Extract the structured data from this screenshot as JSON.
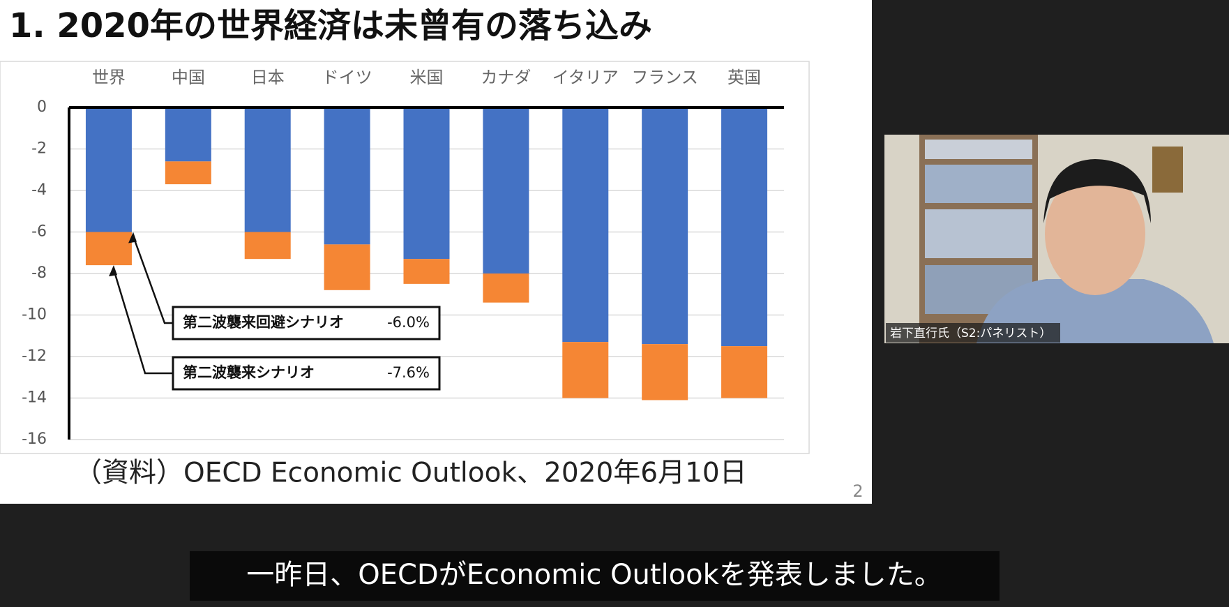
{
  "chart_data": {
    "type": "stacked-bar",
    "title": "1. 2020年の世界経済は未曾有の落ち込み",
    "source": "（資料）OECD Economic Outlook、2020年6月10日",
    "categories": [
      "世界",
      "中国",
      "日本",
      "ドイツ",
      "米国",
      "カナダ",
      "イタリア",
      "フランス",
      "英国"
    ],
    "series": [
      {
        "name": "第二波襲来回避シナリオ",
        "color": "#4472c4",
        "values": [
          -6.0,
          -2.6,
          -6.0,
          -6.6,
          -7.3,
          -8.0,
          -11.3,
          -11.4,
          -11.5
        ]
      },
      {
        "name": "第二波襲来シナリオ",
        "color": "#f58634",
        "values": [
          -1.6,
          -1.1,
          -1.3,
          -2.2,
          -1.2,
          -1.4,
          -2.7,
          -2.7,
          -2.5
        ]
      }
    ],
    "callout_values": [
      "-6.0%",
      "-7.6%"
    ],
    "ylim": [
      -16,
      0
    ],
    "yticks": [
      0,
      -2,
      -4,
      -6,
      -8,
      -10,
      -12,
      -14,
      -16
    ],
    "grid": true
  },
  "slide_number": "2",
  "speaker_label": "岩下直行氏（S2:パネリスト）",
  "caption": "一昨日、OECDがEconomic Outlookを発表しました。"
}
